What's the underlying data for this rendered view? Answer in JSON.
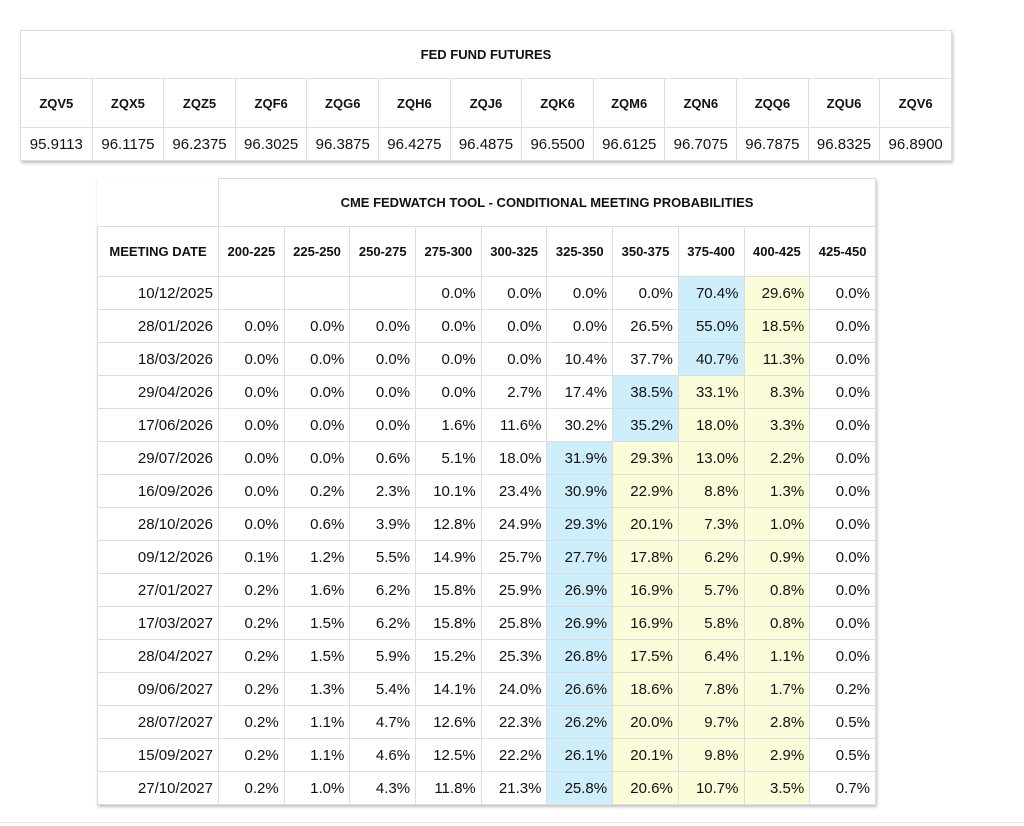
{
  "futures": {
    "title": "FED FUND FUTURES",
    "headers": [
      "ZQV5",
      "ZQX5",
      "ZQZ5",
      "ZQF6",
      "ZQG6",
      "ZQH6",
      "ZQJ6",
      "ZQK6",
      "ZQM6",
      "ZQN6",
      "ZQQ6",
      "ZQU6",
      "ZQV6"
    ],
    "values": [
      "95.9113",
      "96.1175",
      "96.2375",
      "96.3025",
      "96.3875",
      "96.4275",
      "96.4875",
      "96.5500",
      "96.6125",
      "96.7075",
      "96.7875",
      "96.8325",
      "96.8900"
    ]
  },
  "fedwatch": {
    "title": "CME FEDWATCH TOOL - CONDITIONAL MEETING PROBABILITIES",
    "headers": [
      "MEETING DATE",
      "200-225",
      "225-250",
      "250-275",
      "275-300",
      "300-325",
      "325-350",
      "350-375",
      "375-400",
      "400-425",
      "425-450"
    ],
    "rows": [
      [
        "10/12/2025",
        null,
        null,
        null,
        "0.0%",
        "0.0%",
        "0.0%",
        "0.0%",
        "70.4%",
        "29.6%",
        "0.0%"
      ],
      [
        "28/01/2026",
        "0.0%",
        "0.0%",
        "0.0%",
        "0.0%",
        "0.0%",
        "0.0%",
        "26.5%",
        "55.0%",
        "18.5%",
        "0.0%"
      ],
      [
        "18/03/2026",
        "0.0%",
        "0.0%",
        "0.0%",
        "0.0%",
        "0.0%",
        "10.4%",
        "37.7%",
        "40.7%",
        "11.3%",
        "0.0%"
      ],
      [
        "29/04/2026",
        "0.0%",
        "0.0%",
        "0.0%",
        "0.0%",
        "2.7%",
        "17.4%",
        "38.5%",
        "33.1%",
        "8.3%",
        "0.0%"
      ],
      [
        "17/06/2026",
        "0.0%",
        "0.0%",
        "0.0%",
        "1.6%",
        "11.6%",
        "30.2%",
        "35.2%",
        "18.0%",
        "3.3%",
        "0.0%"
      ],
      [
        "29/07/2026",
        "0.0%",
        "0.0%",
        "0.6%",
        "5.1%",
        "18.0%",
        "31.9%",
        "29.3%",
        "13.0%",
        "2.2%",
        "0.0%"
      ],
      [
        "16/09/2026",
        "0.0%",
        "0.2%",
        "2.3%",
        "10.1%",
        "23.4%",
        "30.9%",
        "22.9%",
        "8.8%",
        "1.3%",
        "0.0%"
      ],
      [
        "28/10/2026",
        "0.0%",
        "0.6%",
        "3.9%",
        "12.8%",
        "24.9%",
        "29.3%",
        "20.1%",
        "7.3%",
        "1.0%",
        "0.0%"
      ],
      [
        "09/12/2026",
        "0.1%",
        "1.2%",
        "5.5%",
        "14.9%",
        "25.7%",
        "27.7%",
        "17.8%",
        "6.2%",
        "0.9%",
        "0.0%"
      ],
      [
        "27/01/2027",
        "0.2%",
        "1.6%",
        "6.2%",
        "15.8%",
        "25.9%",
        "26.9%",
        "16.9%",
        "5.7%",
        "0.8%",
        "0.0%"
      ],
      [
        "17/03/2027",
        "0.2%",
        "1.5%",
        "6.2%",
        "15.8%",
        "25.8%",
        "26.9%",
        "16.9%",
        "5.8%",
        "0.8%",
        "0.0%"
      ],
      [
        "28/04/2027",
        "0.2%",
        "1.5%",
        "5.9%",
        "15.2%",
        "25.3%",
        "26.8%",
        "17.5%",
        "6.4%",
        "1.1%",
        "0.0%"
      ],
      [
        "09/06/2027",
        "0.2%",
        "1.3%",
        "5.4%",
        "14.1%",
        "24.0%",
        "26.6%",
        "18.6%",
        "7.8%",
        "1.7%",
        "0.2%"
      ],
      [
        "28/07/2027",
        "0.2%",
        "1.1%",
        "4.7%",
        "12.6%",
        "22.3%",
        "26.2%",
        "20.0%",
        "9.7%",
        "2.8%",
        "0.5%"
      ],
      [
        "15/09/2027",
        "0.2%",
        "1.1%",
        "4.6%",
        "12.5%",
        "22.2%",
        "26.1%",
        "20.1%",
        "9.8%",
        "2.9%",
        "0.5%"
      ],
      [
        "27/10/2027",
        "0.2%",
        "1.0%",
        "4.3%",
        "11.8%",
        "21.3%",
        "25.8%",
        "20.6%",
        "10.7%",
        "3.5%",
        "0.7%"
      ]
    ]
  }
}
